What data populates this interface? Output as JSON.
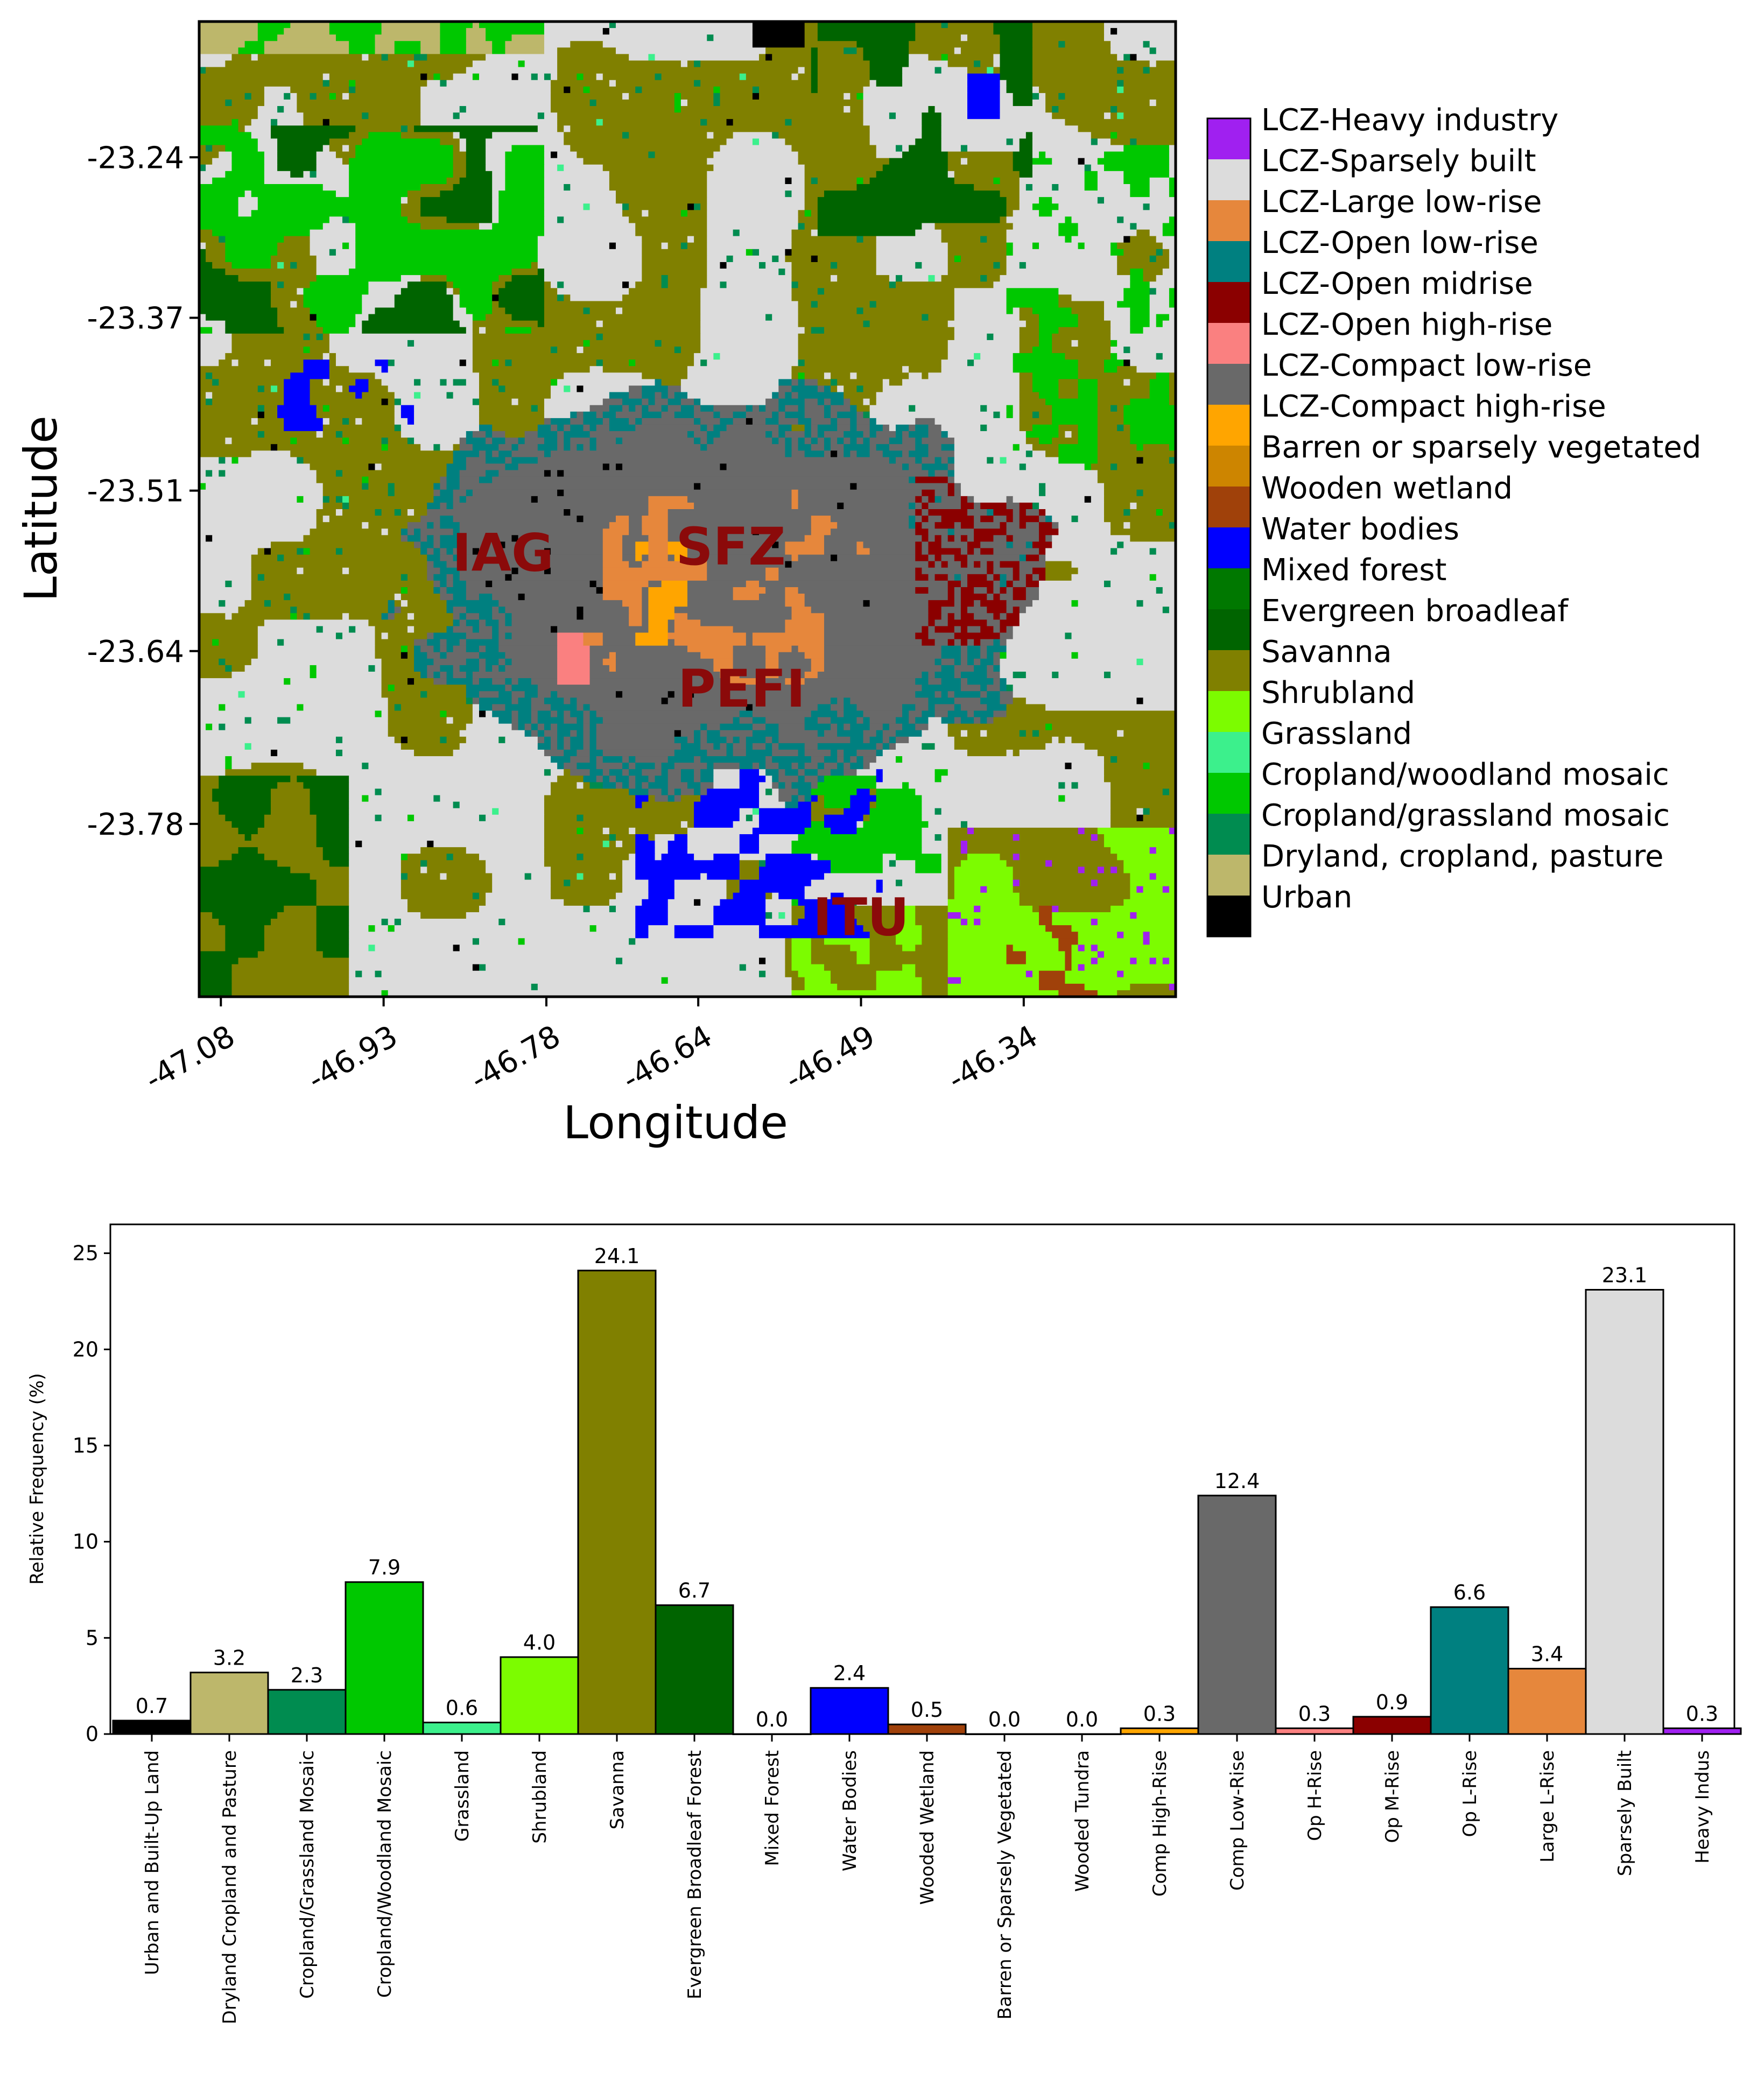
{
  "map": {
    "type": "heatmap",
    "xlabel": "Longitude",
    "ylabel": "Latitude",
    "lon_range": [
      -47.1,
      -46.2
    ],
    "lat_range": [
      -23.92,
      -23.13
    ],
    "x_ticks": [
      "-47.08",
      "-46.93",
      "-46.78",
      "-46.64",
      "-46.49",
      "-46.34"
    ],
    "x_tick_values": [
      -47.08,
      -46.93,
      -46.78,
      -46.64,
      -46.49,
      -46.34
    ],
    "y_ticks": [
      "-23.24",
      "-23.37",
      "-23.51",
      "-23.64",
      "-23.78"
    ],
    "y_tick_values": [
      -23.24,
      -23.37,
      -23.51,
      -23.64,
      -23.78
    ],
    "annotations": [
      {
        "text": "IAG",
        "lon": -46.82,
        "lat": -23.575
      },
      {
        "text": "SFZ",
        "lon": -46.61,
        "lat": -23.57
      },
      {
        "text": "PEFI",
        "lon": -46.6,
        "lat": -23.685
      },
      {
        "text": "ITU",
        "lon": -46.49,
        "lat": -23.87
      }
    ],
    "annotation_color": "#8b0a0a",
    "legend": [
      {
        "label": "LCZ-Heavy industry",
        "color": "#a020f0"
      },
      {
        "label": "LCZ-Sparsely built",
        "color": "#dcdcdc"
      },
      {
        "label": "LCZ-Large low-rise",
        "color": "#e6873c"
      },
      {
        "label": "LCZ-Open low-rise",
        "color": "#008080"
      },
      {
        "label": "LCZ-Open midrise",
        "color": "#8b0000"
      },
      {
        "label": "LCZ-Open high-rise",
        "color": "#fa8080"
      },
      {
        "label": "LCZ-Compact low-rise",
        "color": "#696969"
      },
      {
        "label": "LCZ-Compact high-rise",
        "color": "#ffa500"
      },
      {
        "label": "Barren or sparsely vegetated",
        "color": "#cd8500"
      },
      {
        "label": "Wooden wetland",
        "color": "#a0410a"
      },
      {
        "label": "Water bodies",
        "color": "#0000ff"
      },
      {
        "label": "Mixed forest",
        "color": "#007800"
      },
      {
        "label": "Evergreen broadleaf",
        "color": "#006400"
      },
      {
        "label": "Savanna",
        "color": "#808000"
      },
      {
        "label": "Shrubland",
        "color": "#7cfc00"
      },
      {
        "label": "Grassland",
        "color": "#3cf08c"
      },
      {
        "label": "Cropland/woodland mosaic",
        "color": "#00c800"
      },
      {
        "label": "Cropland/grassland mosaic",
        "color": "#008c50"
      },
      {
        "label": "Dryland, cropland, pasture",
        "color": "#bdb76b"
      },
      {
        "label": "Urban",
        "color": "#000000"
      }
    ]
  },
  "chart_data": {
    "type": "bar",
    "title": "",
    "xlabel": "",
    "ylabel": "Relative Frequency (%)",
    "ylim": [
      0,
      26.5
    ],
    "y_ticks": [
      0,
      5,
      10,
      15,
      20,
      25
    ],
    "grid": false,
    "categories": [
      "Urban and Built-Up Land",
      "Dryland Cropland and Pasture",
      "Cropland/Grassland Mosaic",
      "Cropland/Woodland Mosaic",
      "Grassland",
      "Shrubland",
      "Savanna",
      "Evergreen Broadleaf Forest",
      "Mixed Forest",
      "Water Bodies",
      "Wooded Wetland",
      "Barren or Sparsely Vegetated",
      "Wooded Tundra",
      "Comp High-Rise",
      "Comp Low-Rise",
      "Op H-Rise",
      "Op M-Rise",
      "Op L-Rise",
      "Large L-Rise",
      "Sparsely Built",
      "Heavy Indus"
    ],
    "values": [
      0.7,
      3.2,
      2.3,
      7.9,
      0.6,
      4.0,
      24.1,
      6.7,
      0.0,
      2.4,
      0.5,
      0.0,
      0.0,
      0.3,
      12.4,
      0.3,
      0.9,
      6.6,
      3.4,
      23.1,
      0.3
    ],
    "labels": [
      "0.7",
      "3.2",
      "2.3",
      "7.9",
      "0.6",
      "4.0",
      "24.1",
      "6.7",
      "0.0",
      "2.4",
      "0.5",
      "0.0",
      "0.0",
      "0.3",
      "12.4",
      "0.3",
      "0.9",
      "6.6",
      "3.4",
      "23.1",
      "0.3"
    ],
    "colors": [
      "#000000",
      "#bdb76b",
      "#008c50",
      "#00c800",
      "#3cf08c",
      "#7cfc00",
      "#808000",
      "#006400",
      "#007800",
      "#0000ff",
      "#a0410a",
      "#cd8500",
      "#bdb76b",
      "#ffa500",
      "#696969",
      "#fa8080",
      "#8b0000",
      "#008080",
      "#e6873c",
      "#dcdcdc",
      "#a020f0"
    ]
  }
}
